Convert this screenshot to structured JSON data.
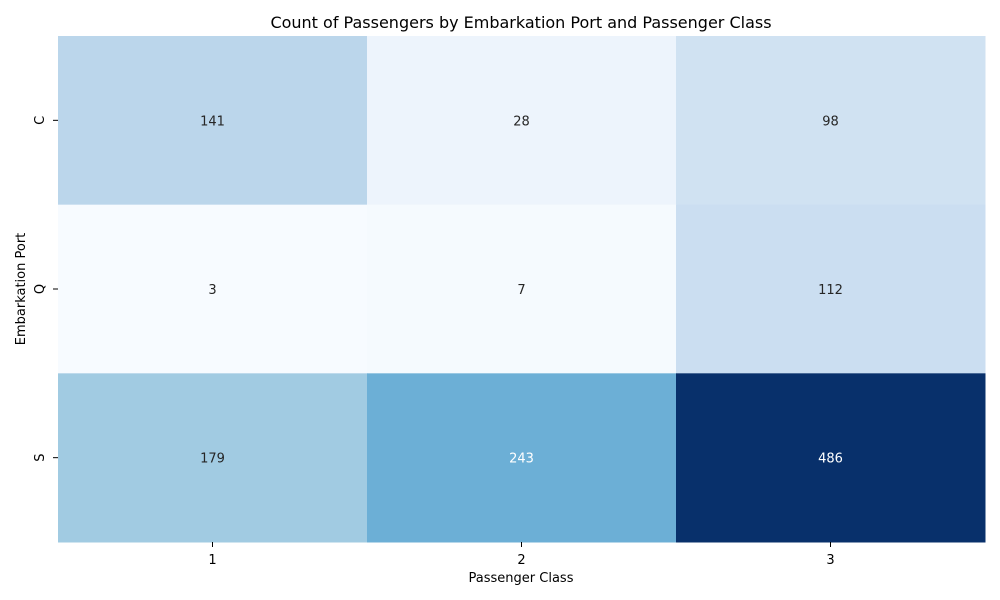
{
  "chart_data": {
    "type": "heatmap",
    "title": "Count of Passengers by Embarkation Port and Passenger Class",
    "xlabel": "Passenger Class",
    "ylabel": "Embarkation Port",
    "x_categories": [
      "1",
      "2",
      "3"
    ],
    "y_categories": [
      "C",
      "Q",
      "S"
    ],
    "values": [
      [
        141,
        28,
        98
      ],
      [
        3,
        7,
        112
      ],
      [
        179,
        243,
        486
      ]
    ],
    "colormap": "Blues",
    "colorbar": false,
    "annotations": true,
    "value_range": [
      3,
      486
    ]
  }
}
